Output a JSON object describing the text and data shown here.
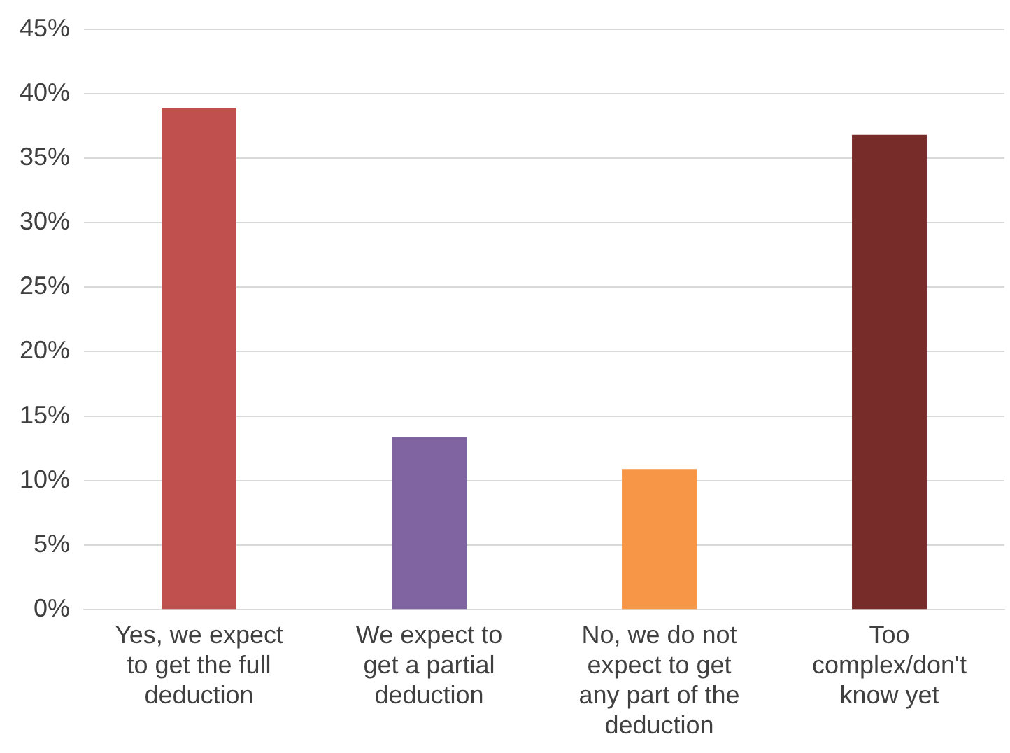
{
  "chart_data": {
    "type": "bar",
    "categories": [
      "Yes, we expect to get the full deduction",
      "We expect to get a partial deduction",
      "No, we do not expect to get any part of the deduction",
      "Too complex/don't know yet"
    ],
    "values": [
      38.9,
      13.4,
      10.9,
      36.8
    ],
    "colors": [
      "#c0504d",
      "#8064a2",
      "#f79646",
      "#772c2a"
    ],
    "ylim": [
      0,
      45
    ],
    "yticks": [
      {
        "value": 0,
        "label": "0%"
      },
      {
        "value": 5,
        "label": "5%"
      },
      {
        "value": 10,
        "label": "10%"
      },
      {
        "value": 15,
        "label": "15%"
      },
      {
        "value": 20,
        "label": "20%"
      },
      {
        "value": 25,
        "label": "25%"
      },
      {
        "value": 30,
        "label": "30%"
      },
      {
        "value": 35,
        "label": "35%"
      },
      {
        "value": 40,
        "label": "40%"
      },
      {
        "value": 45,
        "label": "45%"
      }
    ],
    "grid": "y",
    "legend": false
  }
}
